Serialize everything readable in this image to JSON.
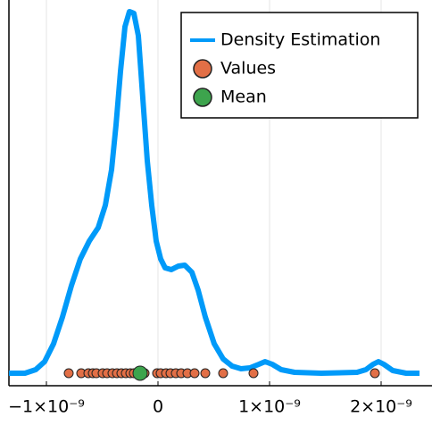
{
  "chart_data": {
    "type": "line",
    "xlim": [
      -1.336e-09,
      2.456e-09
    ],
    "ylim": [
      -54600000.0,
      1630000000.0
    ],
    "xticks": [
      {
        "value": -1e-09,
        "label": "−1×10⁻⁹"
      },
      0,
      {
        "value": 1e-09,
        "label": "1×10⁻⁹"
      },
      {
        "value": 2e-09,
        "label": "2×10⁻⁹"
      }
    ],
    "grid": true,
    "legend": "top-right",
    "series": [
      {
        "name": "Density Estimation",
        "type": "line",
        "color": "#009af9",
        "x": [
          -1.336e-09,
          -1.192e-09,
          -1.096e-09,
          -1.016e-09,
          -9.36e-10,
          -8.56e-10,
          -7.76e-10,
          -6.96e-10,
          -6.16e-10,
          -5.36e-10,
          -4.72e-10,
          -4.16e-10,
          -3.76e-10,
          -3.36e-10,
          -2.96e-10,
          -2.56e-10,
          -2.16e-10,
          -1.76e-10,
          -1.36e-10,
          -9.6e-11,
          -5.6e-11,
          -1.6e-11,
          2.4e-11,
          6.4e-11,
          1.2e-10,
          1.84e-10,
          2.4e-10,
          3.04e-10,
          3.6e-10,
          4.24e-10,
          5.04e-10,
          5.84e-10,
          6.64e-10,
          7.44e-10,
          8.24e-10,
          9.04e-10,
          9.6e-10,
          1.024e-09,
          1.104e-09,
          1.224e-09,
          1.464e-09,
          1.784e-09,
          1.864e-09,
          1.928e-09,
          1.976e-09,
          2.024e-09,
          2.104e-09,
          2.224e-09,
          2.344e-09
        ],
        "values": [
          0,
          0,
          15600000.0,
          50700000.0,
          128700000.0,
          245700000.0,
          382200000.0,
          499200000.0,
          577200000.0,
          635700000.0,
          733200000.0,
          889200000.0,
          1084200000.0,
          1318200000.0,
          1513200000.0,
          1579500000.0,
          1571700000.0,
          1474200000.0,
          1201200000.0,
          928200000.0,
          733200000.0,
          577200000.0,
          499200000.0,
          460200000.0,
          452400000.0,
          468000000.0,
          471900000.0,
          440700000.0,
          362700000.0,
          245700000.0,
          128700000.0,
          62400000.0,
          31200000.0,
          19500000.0,
          23400000.0,
          39000000.0,
          50700000.0,
          39000000.0,
          15600000.0,
          3900000.0,
          0,
          3900000.0,
          15600000.0,
          39000000.0,
          50700000.0,
          39000000.0,
          11700000.0,
          0,
          0
        ]
      },
      {
        "name": "Values",
        "type": "scatter",
        "color": "#e26f46",
        "x": [
          -8e-10,
          -6.88e-10,
          -6.24e-10,
          -5.84e-10,
          -5.52e-10,
          -4.96e-10,
          -4.56e-10,
          -4.08e-10,
          -3.68e-10,
          -3.28e-10,
          -2.88e-10,
          -2.48e-10,
          -2.16e-10,
          -1.76e-10,
          -1.2e-10,
          -8e-12,
          2.4e-11,
          7.2e-11,
          1.12e-10,
          1.6e-10,
          2.08e-10,
          2.64e-10,
          3.28e-10,
          4.24e-10,
          5.84e-10,
          8.56e-10,
          1.944e-09
        ],
        "values": [
          0,
          0,
          0,
          0,
          0,
          0,
          0,
          0,
          0,
          0,
          0,
          0,
          0,
          0,
          0,
          0,
          0,
          0,
          0,
          0,
          0,
          0,
          0,
          0,
          0,
          0,
          0
        ]
      },
      {
        "name": "Mean",
        "type": "scatter",
        "color": "#3da44d",
        "x": [
          -1.6e-10
        ],
        "values": [
          0
        ]
      }
    ]
  }
}
